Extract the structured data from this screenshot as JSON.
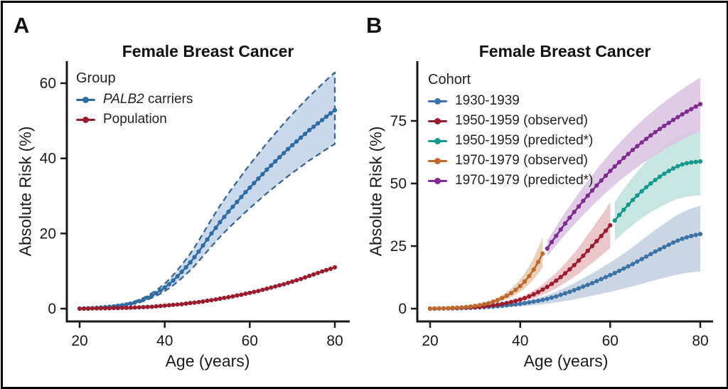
{
  "figure": {
    "panel_a_letter": "A",
    "panel_b_letter": "B",
    "border_color": "#000000",
    "background": "#ffffff",
    "axis_color": "#1a1a1a"
  },
  "chart_data": [
    {
      "type": "line",
      "panel": "A",
      "title": "Female Breast Cancer",
      "xlabel": "Age (years)",
      "ylabel": "Absolute Risk (%)",
      "legend_title": "Group",
      "legend_position": "top-left-inside",
      "grid": false,
      "xlim": [
        17,
        83.5
      ],
      "ylim": [
        0,
        66
      ],
      "x_ticks": [
        20,
        40,
        60,
        80
      ],
      "y_ticks": [
        0,
        20,
        40,
        60
      ],
      "series": [
        {
          "name": "PALB2 carriers",
          "label_italic": "PALB2",
          "label_rest": " carriers",
          "color": "#2F6CA3",
          "band_color": "#C9D9EB",
          "band_border_color": "#3A658F",
          "band_border_style": "dashed",
          "age_start": 20,
          "age_step": 1,
          "values": [
            0,
            0.05,
            0.1,
            0.15,
            0.2,
            0.3,
            0.4,
            0.5,
            0.6,
            0.75,
            0.9,
            1.1,
            1.35,
            1.65,
            2,
            2.4,
            2.9,
            3.5,
            4.1,
            4.8,
            5.6,
            6.5,
            7.5,
            8.6,
            9.8,
            11,
            12.3,
            13.7,
            15.2,
            16.8,
            18.4,
            20,
            21.5,
            23,
            24.4,
            25.8,
            27.1,
            28.4,
            29.7,
            31,
            32.2,
            33.4,
            34.6,
            35.8,
            37,
            38.1,
            39.2,
            40.3,
            41.4,
            42.5,
            43.5,
            44.5,
            45.5,
            46.5,
            47.5,
            48.4,
            49.3,
            50.2,
            51.1,
            52,
            52.8
          ],
          "band": {
            "start_age": 24,
            "lower_factor": 0.83,
            "upper_factor": 1.19
          }
        },
        {
          "name": "Population",
          "color": "#9C1B2D",
          "age_start": 20,
          "age_step": 1,
          "values": [
            0,
            0,
            0,
            0.05,
            0.05,
            0.1,
            0.1,
            0.1,
            0.15,
            0.15,
            0.2,
            0.2,
            0.25,
            0.3,
            0.35,
            0.4,
            0.45,
            0.5,
            0.6,
            0.7,
            0.8,
            0.9,
            1,
            1.1,
            1.2,
            1.35,
            1.5,
            1.6,
            1.75,
            1.9,
            2.1,
            2.25,
            2.45,
            2.65,
            2.85,
            3.05,
            3.25,
            3.5,
            3.7,
            3.95,
            4.2,
            4.45,
            4.7,
            5,
            5.3,
            5.6,
            5.9,
            6.2,
            6.5,
            6.85,
            7.2,
            7.55,
            7.9,
            8.3,
            8.7,
            9.1,
            9.5,
            9.9,
            10.25,
            10.6,
            11
          ]
        }
      ]
    },
    {
      "type": "line",
      "panel": "B",
      "title": "Female Breast Cancer",
      "xlabel": "Age (years)",
      "ylabel": "Absolute Risk (%)",
      "legend_title": "Cohort",
      "legend_position": "top-left-inside",
      "grid": false,
      "xlim": [
        17,
        83.5
      ],
      "ylim": [
        0,
        99
      ],
      "x_ticks": [
        20,
        40,
        60,
        80
      ],
      "y_ticks": [
        0,
        25,
        50,
        75
      ],
      "series": [
        {
          "name": "1930-1939",
          "color": "#3C72A6",
          "band_color": "#C4D0E1",
          "age_start": 20,
          "age_step": 1,
          "values": [
            0,
            0,
            0.05,
            0.05,
            0.1,
            0.1,
            0.15,
            0.2,
            0.25,
            0.3,
            0.4,
            0.5,
            0.6,
            0.7,
            0.8,
            0.95,
            1.1,
            1.3,
            1.5,
            1.7,
            1.9,
            2.2,
            2.5,
            2.8,
            3.1,
            3.5,
            3.9,
            4.4,
            4.9,
            5.5,
            6.1,
            6.7,
            7.4,
            8.1,
            8.8,
            9.5,
            10.2,
            11,
            11.8,
            12.6,
            13.4,
            14.2,
            15.1,
            16,
            16.9,
            17.8,
            18.8,
            19.8,
            20.8,
            21.8,
            22.8,
            23.7,
            24.6,
            25.5,
            26.4,
            27.2,
            27.9,
            28.5,
            29,
            29.4,
            29.8
          ],
          "band": {
            "start_age": 30,
            "lower_factor": 0.5,
            "upper_factor": 1.38
          }
        },
        {
          "name": "1950-1959 (observed)",
          "color": "#9C1B2D",
          "band_color": "#E8BFC3",
          "age_start": 20,
          "age_step": 1,
          "values": [
            0,
            0.02,
            0.05,
            0.1,
            0.15,
            0.2,
            0.25,
            0.3,
            0.4,
            0.5,
            0.6,
            0.75,
            0.9,
            1.1,
            1.35,
            1.6,
            1.9,
            2.25,
            2.65,
            3.1,
            3.6,
            4.2,
            4.9,
            5.7,
            6.6,
            7.6,
            8.7,
            9.9,
            11.2,
            12.6,
            14.1,
            15.7,
            17.4,
            19.2,
            21.1,
            23.1,
            25,
            27,
            29,
            31.1,
            33.3
          ],
          "band": {
            "start_age": 34,
            "lower_factor": 0.73,
            "upper_factor": 1.28
          }
        },
        {
          "name": "1950-1959 (predicted*)",
          "color": "#14998C",
          "band_color": "#BFE2DE",
          "age_start": 61,
          "age_step": 1,
          "values": [
            35.2,
            37.4,
            39.5,
            41.5,
            43.4,
            45.2,
            46.9,
            48.5,
            50,
            51.4,
            52.7,
            53.9,
            55,
            56,
            56.9,
            57.6,
            58.1,
            58.4,
            58.6,
            58.8
          ],
          "band": {
            "start_age": 61,
            "lower_factor": 0.77,
            "upper_factor": 1.21
          }
        },
        {
          "name": "1970-1979 (observed)",
          "color": "#C0692F",
          "band_color": "#E6CAAF",
          "age_start": 20,
          "age_step": 1,
          "values": [
            0,
            0.05,
            0.1,
            0.15,
            0.2,
            0.3,
            0.4,
            0.5,
            0.65,
            0.85,
            1.1,
            1.4,
            1.8,
            2.2,
            2.8,
            3.4,
            4.2,
            5.1,
            6.2,
            7.5,
            9,
            10.8,
            13,
            15.6,
            18.6,
            22
          ],
          "band": {
            "start_age": 31,
            "lower_factor": 0.75,
            "upper_factor": 1.3
          }
        },
        {
          "name": "1970-1979 (predicted*)",
          "color": "#7F2B90",
          "band_color": "#DCC4E2",
          "age_start": 46,
          "age_step": 1,
          "values": [
            24,
            26.6,
            29.1,
            31.6,
            34,
            36.3,
            38.6,
            40.8,
            43,
            45.1,
            47.2,
            49.2,
            51.2,
            53.1,
            55,
            56.8,
            58.5,
            60.2,
            61.8,
            63.4,
            64.9,
            66.4,
            67.8,
            69.2,
            70.5,
            71.8,
            73,
            74.2,
            75.4,
            76.5,
            77.6,
            78.7,
            79.7,
            80.7,
            81.7
          ],
          "band": {
            "start_age": 46,
            "lower_factor": 0.87,
            "upper_factor": 1.13
          }
        }
      ]
    }
  ]
}
